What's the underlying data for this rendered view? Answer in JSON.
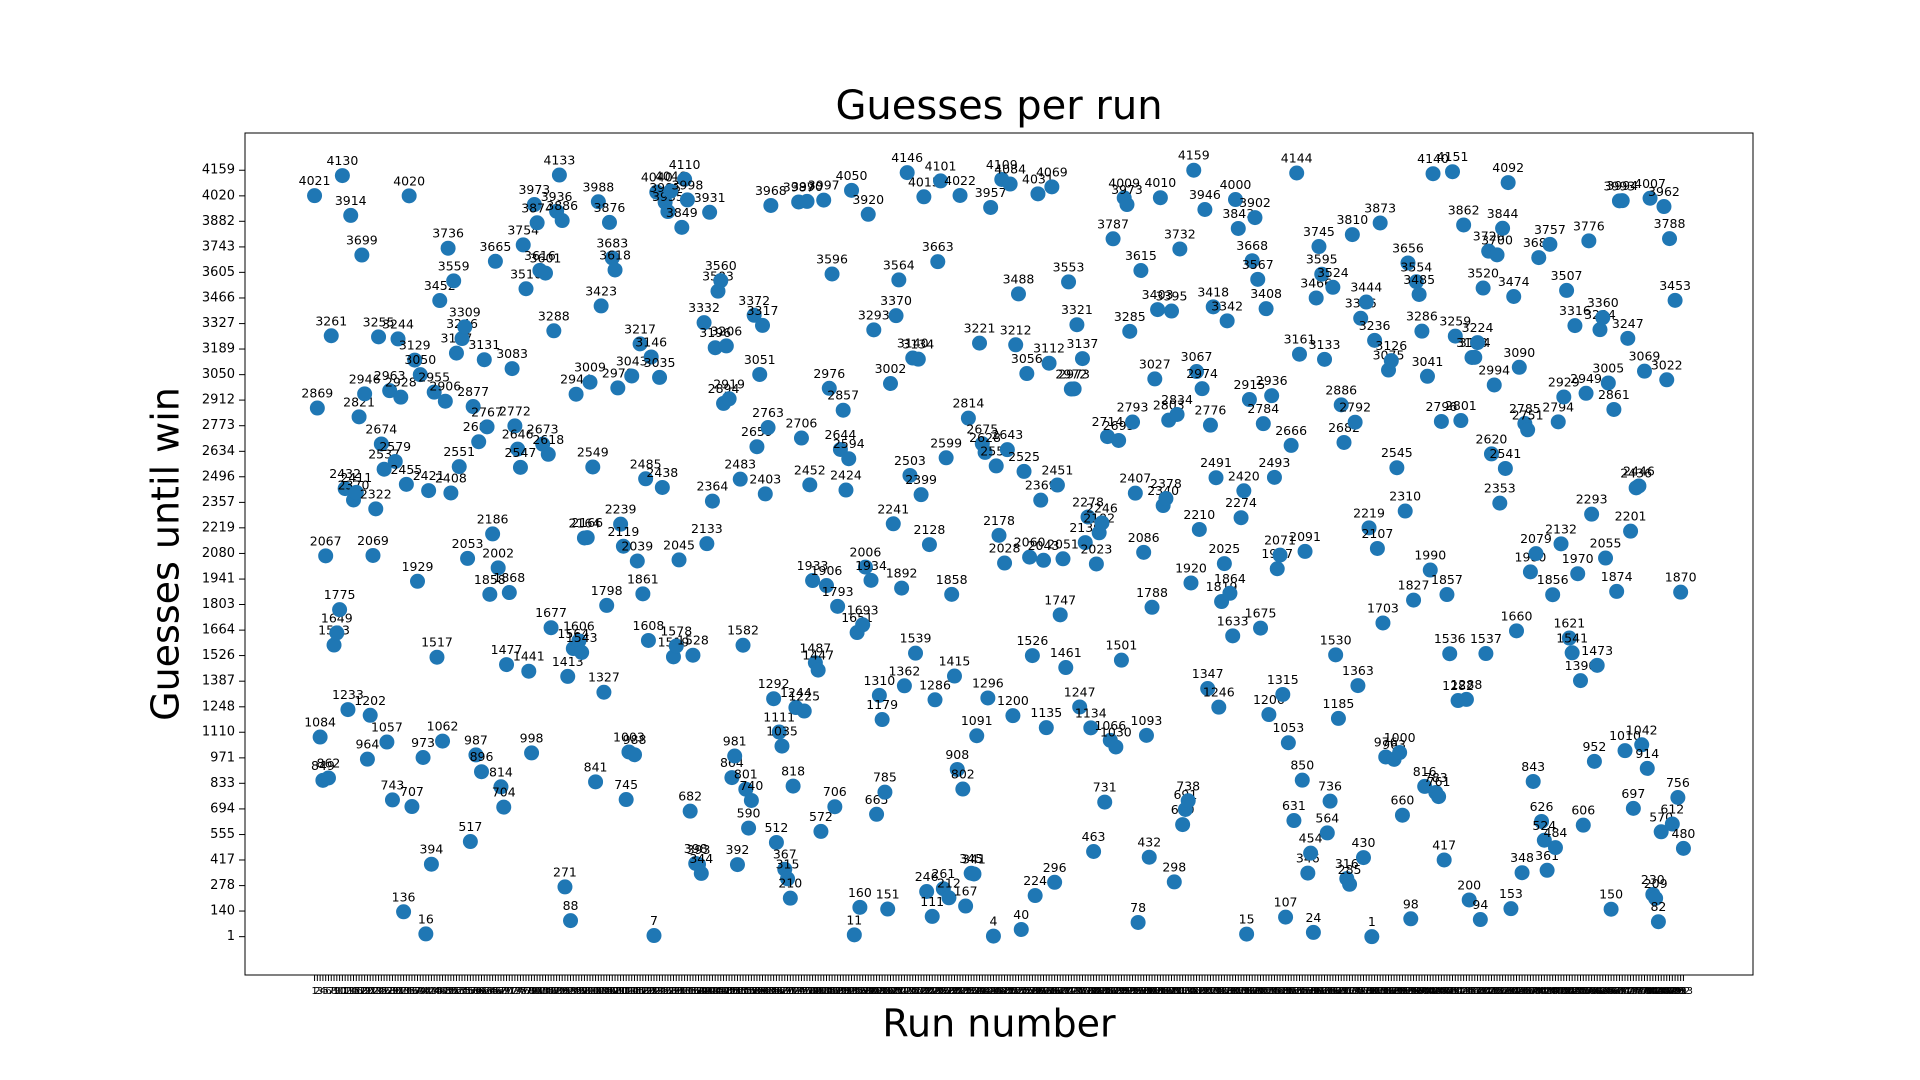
{
  "chart_data": {
    "type": "scatter",
    "title": "Guesses per run",
    "xlabel": "Run number",
    "ylabel": "Guesses until win",
    "color": "#1f77b4",
    "xlim": [
      -24,
      518
    ],
    "ylim": [
      -207,
      4361
    ],
    "yticks": [
      1,
      140,
      278,
      417,
      555,
      694,
      833,
      971,
      1110,
      1248,
      1387,
      1526,
      1664,
      1803,
      1941,
      2080,
      2219,
      2357,
      2496,
      2634,
      2773,
      2912,
      3050,
      3189,
      3327,
      3466,
      3605,
      3743,
      3882,
      4020,
      4159
    ],
    "x": [
      1,
      2,
      3,
      4,
      5,
      6,
      7,
      8,
      9,
      10,
      11,
      12,
      13,
      14,
      15,
      16,
      17,
      18,
      19,
      20,
      21,
      22,
      23,
      24,
      25,
      26,
      27,
      28,
      29,
      30,
      31,
      32,
      33,
      34,
      35,
      36,
      37,
      38,
      39,
      40,
      41,
      42,
      43,
      44,
      45,
      46,
      47,
      48,
      49,
      50,
      51,
      52,
      53,
      54,
      55,
      56,
      57,
      58,
      59,
      60,
      61,
      62,
      63,
      64,
      65,
      66,
      67,
      68,
      69,
      70,
      71,
      72,
      73,
      74,
      75,
      76,
      77,
      78,
      79,
      80,
      81,
      82,
      83,
      84,
      85,
      86,
      87,
      88,
      89,
      90,
      91,
      92,
      93,
      94,
      95,
      96,
      97,
      98,
      99,
      100,
      101,
      102,
      103,
      104,
      105,
      106,
      107,
      108,
      109,
      110,
      111,
      112,
      113,
      114,
      115,
      116,
      117,
      118,
      119,
      120,
      121,
      122,
      123,
      124,
      125,
      126,
      127,
      128,
      129,
      130,
      131,
      132,
      133,
      134,
      135,
      136,
      137,
      138,
      139,
      140,
      141,
      142,
      143,
      144,
      145,
      146,
      147,
      148,
      149,
      150,
      151,
      152,
      153,
      154,
      155,
      156,
      157,
      158,
      159,
      160,
      161,
      162,
      163,
      164,
      165,
      166,
      167,
      168,
      169,
      170,
      171,
      172,
      173,
      174,
      175,
      176,
      177,
      178,
      179,
      180,
      181,
      182,
      183,
      184,
      185,
      186,
      187,
      188,
      189,
      190,
      191,
      192,
      193,
      194,
      195,
      196,
      197,
      198,
      199,
      200,
      201,
      202,
      203,
      204,
      205,
      206,
      207,
      208,
      209,
      210,
      211,
      212,
      213,
      214,
      215,
      216,
      217,
      218,
      219,
      220,
      221,
      222,
      223,
      224,
      225,
      226,
      227,
      228,
      229,
      230,
      231,
      232,
      233,
      234,
      235,
      236,
      237,
      238,
      239,
      240,
      241,
      242,
      243,
      244,
      245,
      246,
      247,
      248,
      249,
      250,
      251,
      252,
      253,
      254,
      255,
      256,
      257,
      258,
      259,
      260,
      261,
      262,
      263,
      264,
      265,
      266,
      267,
      268,
      269,
      270,
      271,
      272,
      273,
      274,
      275,
      276,
      277,
      278,
      279,
      280,
      281,
      282,
      283,
      284,
      285,
      286,
      287,
      288,
      289,
      290,
      291,
      292,
      293,
      294,
      295,
      296,
      297,
      298,
      299,
      300,
      301,
      302,
      303,
      304,
      305,
      306,
      307,
      308,
      309,
      310,
      311,
      312,
      313,
      314,
      315,
      316,
      317,
      318,
      319,
      320,
      321,
      322,
      323,
      324,
      325,
      326,
      327,
      328,
      329,
      330,
      331,
      332,
      333,
      334,
      335,
      336,
      337,
      338,
      339,
      340,
      341,
      342,
      343,
      344,
      345,
      346,
      347,
      348,
      349,
      350,
      351,
      352,
      353,
      354,
      355,
      356,
      357,
      358,
      359,
      360,
      361,
      362,
      363,
      364,
      365,
      366,
      367,
      368,
      369,
      370,
      371,
      372,
      373,
      374,
      375,
      376,
      377,
      378,
      379,
      380,
      381,
      382,
      383,
      384,
      385,
      386,
      387,
      388,
      389,
      390,
      391,
      392,
      393,
      394,
      395,
      396,
      397,
      398,
      399,
      400,
      401,
      402,
      403,
      404,
      405,
      406,
      407,
      408,
      409,
      410,
      411,
      412,
      413,
      414,
      415,
      416,
      417,
      418,
      419,
      420,
      421,
      422,
      423,
      424,
      425,
      426,
      427,
      428,
      429,
      430,
      431,
      432,
      433,
      434,
      435,
      436,
      437,
      438,
      439,
      440,
      441,
      442,
      443,
      444,
      445,
      446,
      447,
      448,
      449,
      450,
      451,
      452,
      453,
      454,
      455,
      456,
      457,
      458,
      459,
      460,
      461,
      462,
      463,
      464,
      465,
      466,
      467,
      468,
      469,
      470,
      471,
      472,
      473,
      474,
      475,
      476,
      477,
      478,
      479,
      480,
      481,
      482,
      483,
      484,
      485,
      486,
      487,
      488,
      489,
      490,
      491,
      492,
      493
    ],
    "values": [
      4021,
      2869,
      1084,
      849,
      2067,
      862,
      3261,
      1583,
      1649,
      1775,
      4130,
      2432,
      1233,
      3914,
      2370,
      2411,
      2821,
      3699,
      2946,
      964,
      1202,
      2069,
      2322,
      3255,
      2674,
      2537,
      1057,
      2963,
      743,
      2579,
      3244,
      2928,
      136,
      2455,
      4020,
      707,
      3129,
      1929,
      3050,
      973,
      16,
      2421,
      394,
      2955,
      1517,
      3452,
      1062,
      2906,
      3736,
      2408,
      3559,
      3167,
      2551,
      3246,
      3309,
      2053,
      517,
      2877,
      987,
      2686,
      896,
      3131,
      2767,
      1858,
      2186,
      3665,
      2002,
      814,
      704,
      1477,
      1868,
      3083,
      2772,
      2646,
      2547,
      3754,
      3516,
      1441,
      998,
      3973,
      3874,
      3616,
      2673,
      3601,
      2618,
      1677,
      3288,
      3936,
      4133,
      3886,
      271,
      1413,
      88,
      1564,
      2944,
      1606,
      1543,
      2164,
      2166,
      3009,
      2549,
      841,
      3988,
      3423,
      1327,
      1798,
      3876,
      3683,
      3618,
      2978,
      2239,
      2119,
      745,
      1003,
      3043,
      988,
      2039,
      3217,
      1861,
      2485,
      1608,
      3146,
      7,
      4040,
      3035,
      2438,
      3985,
      3935,
      4046,
      1519,
      1578,
      2045,
      3849,
      4110,
      3998,
      682,
      1528,
      398,
      393,
      344,
      3332,
      2133,
      3931,
      2364,
      3196,
      3503,
      3560,
      2894,
      3206,
      2919,
      864,
      981,
      392,
      2483,
      1582,
      801,
      590,
      740,
      3372,
      2659,
      3051,
      3317,
      2403,
      2763,
      3968,
      1292,
      512,
      1111,
      1035,
      367,
      315,
      210,
      818,
      1244,
      3987,
      2706,
      1225,
      3990,
      2452,
      1933,
      1487,
      1447,
      572,
      3997,
      1906,
      2976,
      3596,
      706,
      1793,
      2644,
      2857,
      2424,
      2594,
      4050,
      11,
      1651,
      160,
      1693,
      2006,
      3920,
      1934,
      3293,
      665,
      1310,
      1179,
      785,
      151,
      3002,
      2241,
      3370,
      3564,
      1892,
      1362,
      4146,
      2503,
      3140,
      1539,
      3134,
      2399,
      4015,
      246,
      2128,
      111,
      1286,
      3663,
      4101,
      261,
      2599,
      212,
      1858,
      1415,
      908,
      4022,
      802,
      167,
      2814,
      345,
      341,
      1091,
      3221,
      2675,
      2628,
      1296,
      3957,
      4,
      2555,
      2178,
      4109,
      2028,
      2643,
      4084,
      1200,
      3212,
      3488,
      40,
      2525,
      3056,
      2060,
      1526,
      224,
      4031,
      2369,
      2043,
      1135,
      3112,
      4069,
      296,
      2451,
      1747,
      2051,
      1461,
      3553,
      2972,
      2973,
      3321,
      1247,
      3137,
      2139,
      2278,
      1134,
      463,
      2023,
      2192,
      2246,
      731,
      2714,
      1066,
      3787,
      1030,
      2693,
      1501,
      4009,
      3973,
      3285,
      2793,
      2407,
      78,
      3615,
      2086,
      1093,
      432,
      1788,
      3027,
      3403,
      4010,
      2340,
      2378,
      2803,
      3395,
      298,
      2834,
      3732,
      609,
      691,
      738,
      1920,
      4159,
      3067,
      2210,
      2974,
      3946,
      1347,
      2776,
      3418,
      2491,
      1246,
      1819,
      2025,
      3342,
      1864,
      1633,
      4000,
      3843,
      2274,
      2420,
      15,
      2915,
      3668,
      3902,
      3567,
      1675,
      2784,
      3408,
      1206,
      2936,
      2493,
      1997,
      2071,
      1315,
      107,
      1053,
      2666,
      631,
      4144,
      3161,
      850,
      2091,
      346,
      454,
      24,
      3466,
      3745,
      3595,
      3133,
      564,
      736,
      3524,
      1530,
      1185,
      2886,
      2682,
      316,
      285,
      3810,
      2792,
      1363,
      3356,
      430,
      3444,
      2219,
      1,
      3236,
      2107,
      3873,
      1703,
      976,
      3075,
      3126,
      963,
      2545,
      1000,
      660,
      2310,
      3656,
      98,
      1827,
      3554,
      3485,
      3286,
      816,
      3041,
      1990,
      4140,
      783,
      761,
      2796,
      417,
      1857,
      1536,
      4151,
      3259,
      1282,
      2801,
      3862,
      1288,
      200,
      3143,
      3144,
      3224,
      94,
      3520,
      1537,
      3720,
      2620,
      2994,
      3700,
      2353,
      3844,
      2541,
      4092,
      153,
      3474,
      1660,
      3090,
      348,
      2785,
      2751,
      1980,
      843,
      2079,
      3685,
      626,
      524,
      361,
      3757,
      1856,
      484,
      2794,
      2132,
      2929,
      3507,
      1621,
      1541,
      3316,
      1970,
      1390,
      606,
      2949,
      3776,
      2293,
      952,
      1473,
      3294,
      3360,
      2055,
      3005,
      150,
      2861,
      1874,
      3993,
      3994,
      1010,
      3247,
      2201,
      697,
      2436,
      2446,
      1042,
      3069,
      914,
      4007,
      230,
      209,
      82,
      570,
      3962,
      3022,
      3788,
      612,
      3453,
      756,
      1870,
      480
    ]
  }
}
